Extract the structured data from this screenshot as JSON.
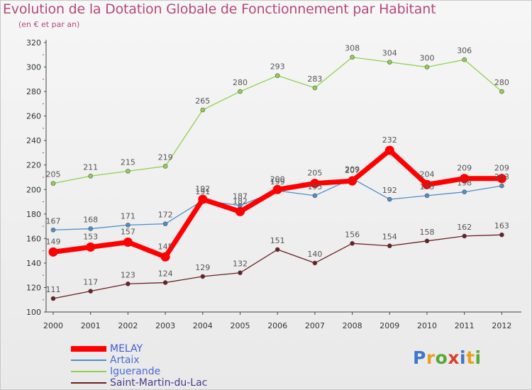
{
  "header": {
    "title": "Evolution de la Dotation Globale de Fonctionnement par Habitant",
    "subtitle": "(en € et par an)"
  },
  "logo": {
    "text": "Proxiti"
  },
  "chart_data": {
    "type": "line",
    "x": [
      "2000",
      "2001",
      "2002",
      "2003",
      "2004",
      "2005",
      "2006",
      "2007",
      "2008",
      "2009",
      "2010",
      "2011",
      "2012"
    ],
    "ylim": [
      100,
      320
    ],
    "yticks": [
      100,
      120,
      140,
      160,
      180,
      200,
      220,
      240,
      260,
      280,
      300,
      320
    ],
    "grid": false,
    "legend_position": "bottom-left",
    "series": [
      {
        "name": "MELAY",
        "color": "#ff0000",
        "emphasis": true,
        "values": [
          149,
          153,
          157,
          145,
          192,
          182,
          200,
          205,
          207,
          232,
          204,
          209,
          209
        ]
      },
      {
        "name": "Artaix",
        "color": "#4d8fc8",
        "emphasis": false,
        "values": [
          167,
          168,
          171,
          172,
          191,
          187,
          199,
          195,
          209,
          192,
          195,
          198,
          203
        ]
      },
      {
        "name": "Iguerande",
        "color": "#8fd14f",
        "emphasis": false,
        "values": [
          205,
          211,
          215,
          219,
          265,
          280,
          293,
          283,
          308,
          304,
          300,
          306,
          280
        ]
      },
      {
        "name": "Saint-Martin-du-Lac",
        "color": "#6b1f1f",
        "emphasis": false,
        "values": [
          111,
          117,
          123,
          124,
          129,
          132,
          151,
          140,
          156,
          154,
          158,
          162,
          163
        ]
      }
    ]
  }
}
